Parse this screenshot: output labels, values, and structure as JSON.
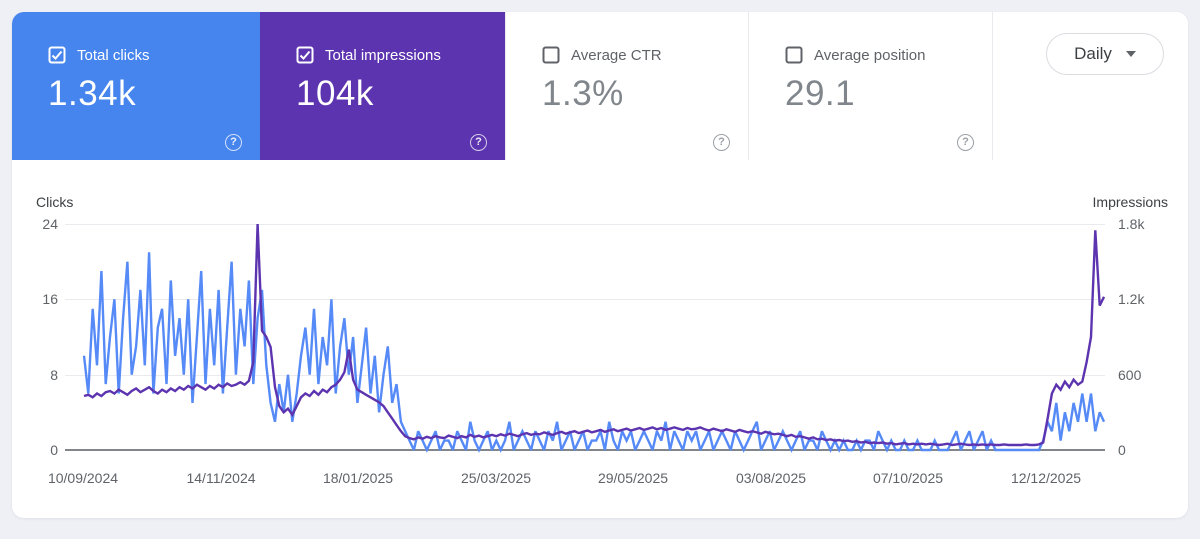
{
  "cards": [
    {
      "label": "Total clicks",
      "value": "1.34k",
      "checked": true,
      "color": "#4684ee",
      "help_icon": "?"
    },
    {
      "label": "Total impressions",
      "value": "104k",
      "checked": true,
      "color": "#5d34af",
      "help_icon": "?"
    },
    {
      "label": "Average CTR",
      "value": "1.3%",
      "checked": false,
      "color": "#ffffff",
      "help_icon": "?"
    },
    {
      "label": "Average position",
      "value": "29.1",
      "checked": false,
      "color": "#ffffff",
      "help_icon": "?"
    }
  ],
  "controls": {
    "granularity": "Daily"
  },
  "chart_data": {
    "type": "line",
    "grid": true,
    "x_tick_labels": [
      "10/09/2024",
      "14/11/2024",
      "18/01/2025",
      "25/03/2025",
      "29/05/2025",
      "03/08/2025",
      "07/10/2025",
      "12/12/2025"
    ],
    "left_axis": {
      "title": "Clicks",
      "ticks": [
        "24",
        "16",
        "8",
        "0"
      ],
      "min": 0,
      "max": 24
    },
    "right_axis": {
      "title": "Impressions",
      "ticks": [
        "1.8k",
        "1.2k",
        "600",
        "0"
      ],
      "min": 0,
      "max": 1800
    },
    "series": [
      {
        "name": "Total clicks",
        "axis": "left",
        "color": "#568af7",
        "values": [
          10,
          6,
          15,
          9,
          19,
          7,
          12,
          16,
          6,
          14,
          20,
          8,
          11,
          17,
          9,
          21,
          6,
          13,
          15,
          7,
          18,
          10,
          14,
          8,
          16,
          5,
          12,
          19,
          7,
          15,
          9,
          17,
          6,
          13,
          20,
          8,
          15,
          11,
          18,
          7,
          14,
          17,
          9,
          5,
          3,
          7,
          4,
          8,
          3,
          6,
          10,
          13,
          8,
          15,
          7,
          12,
          9,
          16,
          6,
          11,
          14,
          8,
          12,
          5,
          9,
          13,
          6,
          10,
          4,
          8,
          11,
          5,
          7,
          3,
          2,
          1,
          0,
          2,
          1,
          0,
          1,
          2,
          0,
          1,
          1,
          0,
          2,
          1,
          0,
          3,
          1,
          0,
          1,
          2,
          0,
          1,
          0,
          1,
          3,
          0,
          1,
          2,
          1,
          0,
          2,
          1,
          0,
          2,
          1,
          3,
          0,
          1,
          2,
          0,
          1,
          2,
          0,
          1,
          1,
          2,
          0,
          3,
          1,
          0,
          2,
          1,
          2,
          0,
          1,
          2,
          1,
          0,
          2,
          1,
          3,
          0,
          2,
          1,
          0,
          2,
          1,
          2,
          0,
          1,
          2,
          0,
          1,
          2,
          1,
          0,
          2,
          1,
          0,
          1,
          2,
          3,
          0,
          1,
          2,
          0,
          1,
          2,
          1,
          0,
          1,
          2,
          0,
          1,
          1,
          0,
          2,
          1,
          0,
          1,
          0,
          1,
          0,
          0,
          1,
          0,
          1,
          1,
          0,
          2,
          1,
          0,
          1,
          0,
          0,
          1,
          0,
          0,
          1,
          0,
          0,
          0,
          1,
          0,
          0,
          0,
          1,
          2,
          0,
          1,
          2,
          0,
          1,
          2,
          0,
          1,
          0,
          0,
          0,
          0,
          0,
          0,
          0,
          0,
          0,
          0,
          0,
          1,
          3,
          2,
          5,
          1,
          4,
          2,
          5,
          3,
          6,
          3,
          6,
          2,
          4,
          3
        ]
      },
      {
        "name": "Total impressions",
        "axis": "right",
        "color": "#5d34af",
        "values": [
          430,
          440,
          420,
          450,
          430,
          460,
          470,
          450,
          480,
          460,
          440,
          470,
          490,
          460,
          480,
          500,
          470,
          450,
          480,
          460,
          490,
          470,
          500,
          480,
          510,
          490,
          520,
          500,
          480,
          510,
          490,
          520,
          500,
          530,
          510,
          520,
          540,
          520,
          550,
          700,
          1800,
          950,
          900,
          820,
          500,
          350,
          300,
          330,
          280,
          350,
          420,
          450,
          430,
          470,
          440,
          480,
          460,
          500,
          520,
          560,
          620,
          800,
          560,
          480,
          460,
          440,
          420,
          400,
          380,
          350,
          300,
          250,
          200,
          150,
          110,
          95,
          85,
          100,
          90,
          105,
          95,
          110,
          100,
          95,
          115,
          105,
          95,
          110,
          100,
          120,
          105,
          115,
          100,
          110,
          120,
          110,
          125,
          115,
          130,
          120,
          110,
          125,
          135,
          120,
          130,
          125,
          140,
          130,
          120,
          135,
          145,
          130,
          140,
          150,
          135,
          145,
          155,
          140,
          150,
          160,
          145,
          155,
          165,
          150,
          160,
          170,
          155,
          165,
          175,
          160,
          170,
          180,
          165,
          175,
          160,
          170,
          180,
          170,
          160,
          175,
          165,
          170,
          180,
          165,
          155,
          170,
          160,
          150,
          165,
          155,
          145,
          160,
          150,
          140,
          150,
          140,
          130,
          145,
          135,
          125,
          130,
          120,
          110,
          120,
          105,
          110,
          100,
          90,
          100,
          85,
          90,
          80,
          85,
          75,
          80,
          70,
          75,
          65,
          70,
          60,
          65,
          55,
          60,
          55,
          60,
          50,
          55,
          45,
          50,
          55,
          45,
          50,
          45,
          50,
          45,
          50,
          45,
          40,
          45,
          50,
          40,
          45,
          50,
          45,
          40,
          45,
          40,
          45,
          40,
          45,
          40,
          40,
          45,
          40,
          40,
          40,
          40,
          45,
          40,
          40,
          45,
          60,
          250,
          450,
          520,
          480,
          545,
          500,
          560,
          520,
          545,
          700,
          900,
          1750,
          1150,
          1220
        ]
      }
    ]
  }
}
